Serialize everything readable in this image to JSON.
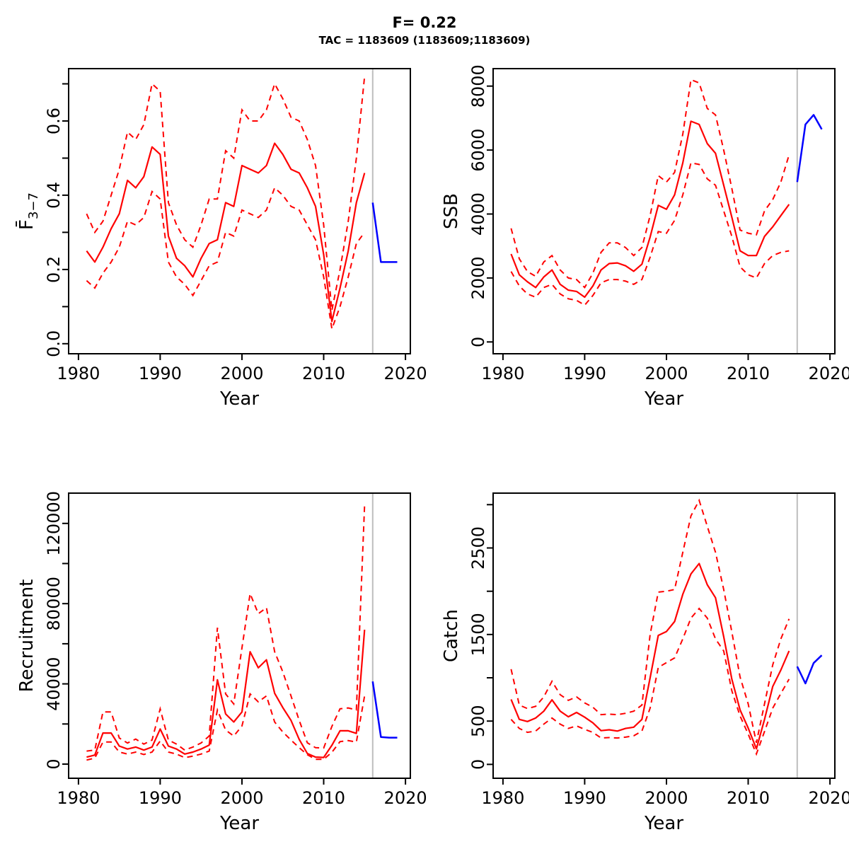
{
  "title": "F= 0.22",
  "subtitle": "TAC = 1183609 (1183609;1183609)",
  "xlabel": "Year",
  "divider_year": 2016,
  "colors": {
    "median": "#ff0000",
    "confidence": "#ff0000",
    "projection": "#0000ff",
    "divider": "#bebebe",
    "axis": "#000000",
    "background": "#ffffff"
  },
  "chart_data": [
    {
      "name": "fbar",
      "type": "line",
      "ylab": "F̄",
      "ylab_sub": "3−7",
      "legend": "none",
      "grid": false,
      "x": [
        1981,
        1982,
        1983,
        1984,
        1985,
        1986,
        1987,
        1988,
        1989,
        1990,
        1991,
        1992,
        1993,
        1994,
        1995,
        1996,
        1997,
        1998,
        1999,
        2000,
        2001,
        2002,
        2003,
        2004,
        2005,
        2006,
        2007,
        2008,
        2009,
        2010,
        2011,
        2012,
        2013,
        2014,
        2015
      ],
      "median": [
        0.25,
        0.22,
        0.26,
        0.31,
        0.35,
        0.44,
        0.42,
        0.45,
        0.53,
        0.51,
        0.29,
        0.23,
        0.21,
        0.18,
        0.23,
        0.27,
        0.28,
        0.38,
        0.37,
        0.48,
        0.47,
        0.46,
        0.48,
        0.54,
        0.51,
        0.47,
        0.46,
        0.42,
        0.37,
        0.24,
        0.06,
        0.15,
        0.25,
        0.38,
        0.46
      ],
      "lower": [
        0.17,
        0.15,
        0.19,
        0.22,
        0.26,
        0.33,
        0.32,
        0.34,
        0.41,
        0.39,
        0.22,
        0.18,
        0.16,
        0.13,
        0.17,
        0.21,
        0.22,
        0.3,
        0.29,
        0.36,
        0.35,
        0.34,
        0.36,
        0.42,
        0.4,
        0.37,
        0.36,
        0.32,
        0.28,
        0.18,
        0.04,
        0.1,
        0.18,
        0.27,
        0.3
      ],
      "upper": [
        0.35,
        0.3,
        0.33,
        0.4,
        0.47,
        0.57,
        0.55,
        0.59,
        0.7,
        0.68,
        0.38,
        0.32,
        0.28,
        0.26,
        0.32,
        0.39,
        0.39,
        0.52,
        0.5,
        0.63,
        0.6,
        0.6,
        0.63,
        0.7,
        0.66,
        0.61,
        0.6,
        0.55,
        0.48,
        0.32,
        0.09,
        0.2,
        0.33,
        0.5,
        0.72
      ],
      "projection_x": [
        2016,
        2017,
        2018,
        2019
      ],
      "projection": [
        0.38,
        0.22,
        0.22,
        0.22
      ],
      "xlim": [
        1978.8,
        2020.6
      ],
      "ylim": [
        -0.027,
        0.741
      ],
      "xtick_values": [
        1980,
        1990,
        2000,
        2010,
        2020
      ],
      "xtick_labels": [
        "1980",
        "1990",
        "2000",
        "2010",
        "2020"
      ],
      "ytick_values": [
        0,
        0.1,
        0.2,
        0.3,
        0.4,
        0.5,
        0.6,
        0.7
      ],
      "ytick_labels": [
        "0.0",
        "",
        "0.2",
        "",
        "0.4",
        "",
        "0.6",
        ""
      ]
    },
    {
      "name": "ssb",
      "type": "line",
      "ylab": "SSB",
      "ylab_sub": "",
      "legend": "none",
      "grid": false,
      "x": [
        1981,
        1982,
        1983,
        1984,
        1985,
        1986,
        1987,
        1988,
        1989,
        1990,
        1991,
        1992,
        1993,
        1994,
        1995,
        1996,
        1997,
        1998,
        1999,
        2000,
        2001,
        2002,
        2003,
        2004,
        2005,
        2006,
        2007,
        2008,
        2009,
        2010,
        2011,
        2012,
        2013,
        2014,
        2015
      ],
      "median": [
        2750,
        2100,
        1880,
        1700,
        2030,
        2250,
        1800,
        1620,
        1580,
        1400,
        1750,
        2250,
        2450,
        2470,
        2380,
        2210,
        2430,
        3280,
        4270,
        4150,
        4600,
        5600,
        6900,
        6800,
        6200,
        5900,
        4900,
        3900,
        2850,
        2700,
        2700,
        3300,
        3600,
        3950,
        4300
      ],
      "lower": [
        2200,
        1750,
        1500,
        1400,
        1700,
        1800,
        1500,
        1350,
        1300,
        1150,
        1450,
        1850,
        1950,
        1950,
        1900,
        1800,
        1950,
        2650,
        3450,
        3400,
        3800,
        4600,
        5600,
        5550,
        5100,
        4900,
        4100,
        3300,
        2350,
        2100,
        2000,
        2450,
        2700,
        2800,
        2850
      ],
      "upper": [
        3550,
        2600,
        2200,
        2050,
        2500,
        2700,
        2250,
        2000,
        1950,
        1700,
        2150,
        2800,
        3100,
        3100,
        2950,
        2700,
        2950,
        3950,
        5200,
        5000,
        5300,
        6500,
        8200,
        8100,
        7300,
        7100,
        6000,
        4800,
        3500,
        3400,
        3350,
        4100,
        4450,
        5000,
        5850
      ],
      "projection_x": [
        2016,
        2017,
        2018,
        2019
      ],
      "projection": [
        5000,
        6800,
        7100,
        6650
      ],
      "xlim": [
        1978.8,
        2020.6
      ],
      "ylim": [
        -370,
        8546
      ],
      "xtick_values": [
        1980,
        1990,
        2000,
        2010,
        2020
      ],
      "xtick_labels": [
        "1980",
        "1990",
        "2000",
        "2010",
        "2020"
      ],
      "ytick_values": [
        0,
        2000,
        4000,
        6000,
        8000
      ],
      "ytick_labels": [
        "0",
        "2000",
        "4000",
        "6000",
        "8000"
      ]
    },
    {
      "name": "recruitment",
      "type": "line",
      "ylab": "Recruitment",
      "ylab_sub": "",
      "legend": "none",
      "grid": false,
      "x": [
        1981,
        1982,
        1983,
        1984,
        1985,
        1986,
        1987,
        1988,
        1989,
        1990,
        1991,
        1992,
        1993,
        1994,
        1995,
        1996,
        1997,
        1998,
        1999,
        2000,
        2001,
        2002,
        2003,
        2004,
        2005,
        2006,
        2007,
        2008,
        2009,
        2010,
        2011,
        2012,
        2013,
        2014,
        2015
      ],
      "median": [
        3500,
        4500,
        15500,
        15500,
        9000,
        7500,
        8500,
        7000,
        8500,
        17500,
        9000,
        7500,
        5000,
        6000,
        7500,
        9500,
        42000,
        25000,
        21000,
        26000,
        56000,
        48000,
        52000,
        35300,
        28200,
        21800,
        12300,
        5300,
        3500,
        3300,
        9400,
        16600,
        16600,
        15300,
        67000
      ],
      "lower": [
        2000,
        3000,
        11000,
        11000,
        6000,
        5000,
        6000,
        4800,
        6000,
        11500,
        6000,
        5000,
        3200,
        4000,
        5000,
        6500,
        27000,
        17000,
        14000,
        19000,
        35000,
        31000,
        34000,
        21000,
        16000,
        12000,
        8200,
        4700,
        2400,
        2400,
        5900,
        11200,
        11700,
        11000,
        34000
      ],
      "upper": [
        6500,
        7000,
        26000,
        26000,
        13000,
        10500,
        12500,
        10000,
        12000,
        27500,
        12000,
        10000,
        7000,
        8500,
        10500,
        14000,
        68000,
        35000,
        30000,
        58000,
        85000,
        75000,
        78000,
        56000,
        46000,
        34000,
        21800,
        10600,
        8200,
        8000,
        18800,
        27600,
        28000,
        27000,
        129000
      ],
      "projection_x": [
        2016,
        2017,
        2018,
        2019
      ],
      "projection": [
        41200,
        13500,
        13200,
        13200
      ],
      "xlim": [
        1978.8,
        2020.6
      ],
      "ylim": [
        -7055,
        135100
      ],
      "xtick_values": [
        1980,
        1990,
        2000,
        2010,
        2020
      ],
      "xtick_labels": [
        "1980",
        "1990",
        "2000",
        "2010",
        "2020"
      ],
      "ytick_values": [
        0,
        20000,
        40000,
        60000,
        80000,
        100000,
        120000
      ],
      "ytick_labels": [
        "0",
        "",
        "40000",
        "",
        "80000",
        "",
        "120000"
      ]
    },
    {
      "name": "catch",
      "type": "line",
      "ylab": "Catch",
      "ylab_sub": "",
      "legend": "none",
      "grid": false,
      "x": [
        1981,
        1982,
        1983,
        1984,
        1985,
        1986,
        1987,
        1988,
        1989,
        1990,
        1991,
        1992,
        1993,
        1994,
        1995,
        1996,
        1997,
        1998,
        1999,
        2000,
        2001,
        2002,
        2003,
        2004,
        2005,
        2006,
        2007,
        2008,
        2009,
        2010,
        2011,
        2012,
        2013,
        2014,
        2015
      ],
      "median": [
        750,
        520,
        495,
        535,
        615,
        745,
        615,
        550,
        600,
        545,
        480,
        390,
        400,
        385,
        415,
        430,
        520,
        1000,
        1490,
        1535,
        1650,
        1965,
        2200,
        2320,
        2075,
        1925,
        1475,
        985,
        630,
        420,
        180,
        520,
        900,
        1090,
        1310
      ],
      "lower": [
        520,
        415,
        370,
        385,
        465,
        535,
        465,
        415,
        445,
        405,
        370,
        305,
        310,
        305,
        315,
        330,
        385,
        650,
        1120,
        1175,
        1230,
        1450,
        1690,
        1800,
        1690,
        1450,
        1310,
        850,
        560,
        350,
        120,
        380,
        650,
        820,
        985
      ],
      "upper": [
        1100,
        685,
        645,
        670,
        780,
        960,
        805,
        740,
        780,
        710,
        660,
        575,
        580,
        575,
        590,
        615,
        685,
        1500,
        1990,
        2000,
        2020,
        2450,
        2870,
        3050,
        2750,
        2450,
        2020,
        1530,
        1010,
        700,
        250,
        700,
        1150,
        1450,
        1680
      ],
      "projection_x": [
        2016,
        2017,
        2018,
        2019
      ],
      "projection": [
        1130,
        935,
        1170,
        1260
      ],
      "xlim": [
        1978.8,
        2020.6
      ],
      "ylim": [
        -160,
        3133
      ],
      "xtick_values": [
        1980,
        1990,
        2000,
        2010,
        2020
      ],
      "xtick_labels": [
        "1980",
        "1990",
        "2000",
        "2010",
        "2020"
      ],
      "ytick_values": [
        0,
        500,
        1000,
        1500,
        2000,
        2500,
        3000
      ],
      "ytick_labels": [
        "0",
        "500",
        "",
        "1500",
        "",
        "2500",
        ""
      ]
    }
  ]
}
